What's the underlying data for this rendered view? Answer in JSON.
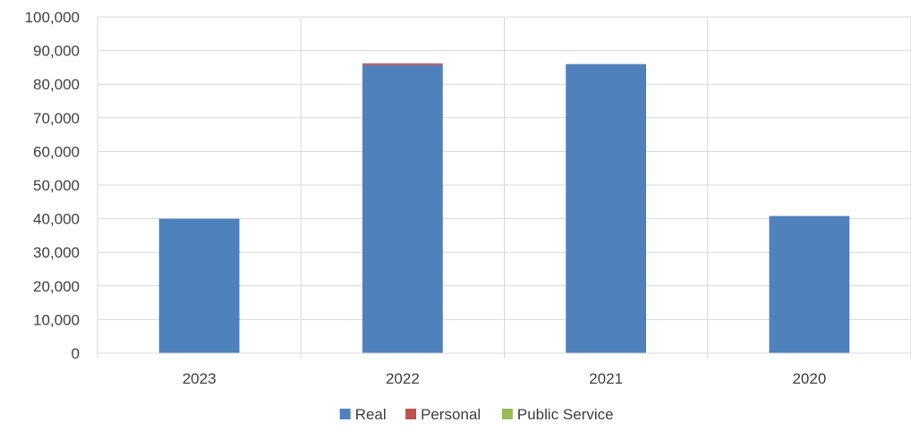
{
  "chart_data": {
    "type": "bar",
    "stacked": true,
    "categories": [
      "2023",
      "2022",
      "2021",
      "2020"
    ],
    "series": [
      {
        "name": "Real",
        "values": [
          40000,
          85700,
          86000,
          40800
        ],
        "color": "#4F81BD"
      },
      {
        "name": "Personal",
        "values": [
          0,
          500,
          0,
          0
        ],
        "color": "#C0504D"
      },
      {
        "name": "Public Service",
        "values": [
          0,
          0,
          0,
          0
        ],
        "color": "#9BBB59"
      }
    ],
    "ylim": [
      0,
      100000
    ],
    "y_ticks": [
      0,
      10000,
      20000,
      30000,
      40000,
      50000,
      60000,
      70000,
      80000,
      90000,
      100000
    ],
    "y_tick_labels": [
      "0",
      "10,000",
      "20,000",
      "30,000",
      "40,000",
      "50,000",
      "60,000",
      "70,000",
      "80,000",
      "90,000",
      "100,000"
    ],
    "title": "",
    "xlabel": "",
    "ylabel": "",
    "grid": true,
    "legend_position": "bottom-center",
    "gridline_color": "#D9D9D9",
    "text_color": "#404040"
  }
}
